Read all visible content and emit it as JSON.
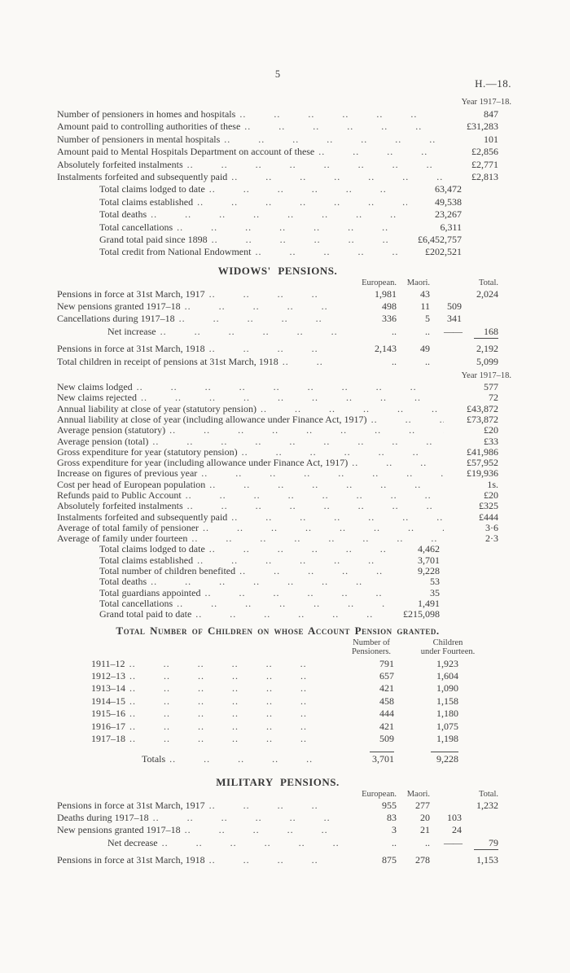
{
  "page": {
    "number": "5",
    "doc_ref": "H.—18."
  },
  "pre_block": {
    "year_label": "Year 1917–18.",
    "lines": [
      {
        "label": "Number of pensioners in homes and hospitals",
        "value": "847"
      },
      {
        "label": "Amount paid to controlling authorities of these",
        "value": "£31,283"
      },
      {
        "label": "Number of pensioners in mental hospitals",
        "value": "101"
      },
      {
        "label": "Amount paid to Mental Hospitals Department on account of these",
        "value": "£2,856"
      },
      {
        "label": "Absolutely forfeited instalments",
        "value": "£2,771"
      },
      {
        "label": "Instalments forfeited and subsequently paid",
        "value": "£2,813"
      }
    ],
    "totals": [
      {
        "label": "Total claims lodged to date",
        "value": "63,472"
      },
      {
        "label": "Total claims established",
        "value": "49,538"
      },
      {
        "label": "Total deaths",
        "value": "23,267"
      },
      {
        "label": "Total cancellations",
        "value": "6,311"
      },
      {
        "label": "Grand total paid since 1898",
        "value": "£6,452,757"
      },
      {
        "label": "Total credit from National Endowment",
        "value": "£202,521"
      }
    ]
  },
  "widows": {
    "title": "WIDOWS' PENSIONS.",
    "headers": {
      "col1": "European.",
      "col2": "Maori.",
      "col4": "Total."
    },
    "rows": [
      {
        "label": "Pensions in force at 31st March, 1917",
        "c1": "1,981",
        "c2": "43",
        "c3": "",
        "c4": "2,024"
      },
      {
        "label": "New pensions granted 1917–18",
        "c1": "498",
        "c2": "11",
        "c3": "509",
        "c4": ""
      },
      {
        "label": "Cancellations during 1917–18",
        "c1": "336",
        "c2": "5",
        "c3": "341",
        "c4": ""
      },
      {
        "label": "Net increase",
        "c1": "..",
        "c2": "..",
        "c3": "——",
        "c4": "168"
      },
      {
        "label": "Pensions in force at 31st March, 1918",
        "c1": "2,143",
        "c2": "49",
        "c3": "",
        "c4": "2,192"
      },
      {
        "label": "Total children in receipt of pensions at 31st March, 1918",
        "c1": "..",
        "c2": "..",
        "c3": "",
        "c4": "5,099"
      }
    ]
  },
  "year_block": {
    "year_label": "Year 1917–18.",
    "lines": [
      {
        "label": "New claims lodged",
        "value": "577"
      },
      {
        "label": "New claims rejected",
        "value": "72"
      },
      {
        "label": "Annual liability at close of year (statutory pension)",
        "value": "£43,872"
      },
      {
        "label": "Annual liability at close of year (including allowance under Finance Act, 1917)",
        "value": "£73,872"
      },
      {
        "label": "Average pension (statutory)",
        "value": "£20"
      },
      {
        "label": "Average pension (total)",
        "value": "£33"
      },
      {
        "label": "Gross expenditure for year (statutory pension)",
        "value": "£41,986"
      },
      {
        "label": "Gross expenditure for year (including allowance under Finance Act, 1917)",
        "value": "£57,952"
      },
      {
        "label": "Increase on figures of previous year",
        "value": "£19,936"
      },
      {
        "label": "Cost per head of European population",
        "value": "1s."
      },
      {
        "label": "Refunds paid to Public Account",
        "value": "£20"
      },
      {
        "label": "Absolutely forfeited instalments",
        "value": "£325"
      },
      {
        "label": "Instalments forfeited and subsequently paid",
        "value": "£444"
      },
      {
        "label": "Average of total family of pensioner",
        "value": "3·6"
      },
      {
        "label": "Average of family under fourteen",
        "value": "2·3"
      }
    ],
    "totals": [
      {
        "label": "Total claims lodged to date",
        "value": "4,462"
      },
      {
        "label": "Total claims established",
        "value": "3,701"
      },
      {
        "label": "Total number of children benefited",
        "value": "9,228"
      },
      {
        "label": "Total deaths",
        "value": "53"
      },
      {
        "label": "Total guardians appointed",
        "value": "35"
      },
      {
        "label": "Total cancellations",
        "value": "1,491"
      },
      {
        "label": "Grand total paid to date",
        "value": "£215,098"
      }
    ]
  },
  "children_table": {
    "title": "Total Number of Children on whose Account Pension granted.",
    "headers": {
      "col1": [
        "Number of",
        "Pensioners."
      ],
      "col2": [
        "Children",
        "under Fourteen."
      ]
    },
    "rows": [
      {
        "year": "1911–12",
        "pensioners": "791",
        "children": "1,923"
      },
      {
        "year": "1912–13",
        "pensioners": "657",
        "children": "1,604"
      },
      {
        "year": "1913–14",
        "pensioners": "421",
        "children": "1,090"
      },
      {
        "year": "1914–15",
        "pensioners": "458",
        "children": "1,158"
      },
      {
        "year": "1915–16",
        "pensioners": "444",
        "children": "1,180"
      },
      {
        "year": "1916–17",
        "pensioners": "421",
        "children": "1,075"
      },
      {
        "year": "1917–18",
        "pensioners": "509",
        "children": "1,198"
      }
    ],
    "totals": {
      "label": "Totals",
      "pensioners": "3,701",
      "children": "9,228"
    }
  },
  "military": {
    "title": "MILITARY PENSIONS.",
    "headers": {
      "col1": "European.",
      "col2": "Maori.",
      "col4": "Total."
    },
    "rows": [
      {
        "label": "Pensions in force at 31st March, 1917",
        "c1": "955",
        "c2": "277",
        "c3": "",
        "c4": "1,232"
      },
      {
        "label": "Deaths during 1917–18",
        "c1": "83",
        "c2": "20",
        "c3": "103",
        "c4": ""
      },
      {
        "label": "New pensions granted 1917–18",
        "c1": "3",
        "c2": "21",
        "c3": "24",
        "c4": ""
      },
      {
        "label": "Net decrease",
        "c1": "..",
        "c2": "..",
        "c3": "——",
        "c4": "79"
      },
      {
        "label": "Pensions in force at 31st March, 1918",
        "c1": "875",
        "c2": "278",
        "c3": "",
        "c4": "1,153"
      }
    ]
  }
}
